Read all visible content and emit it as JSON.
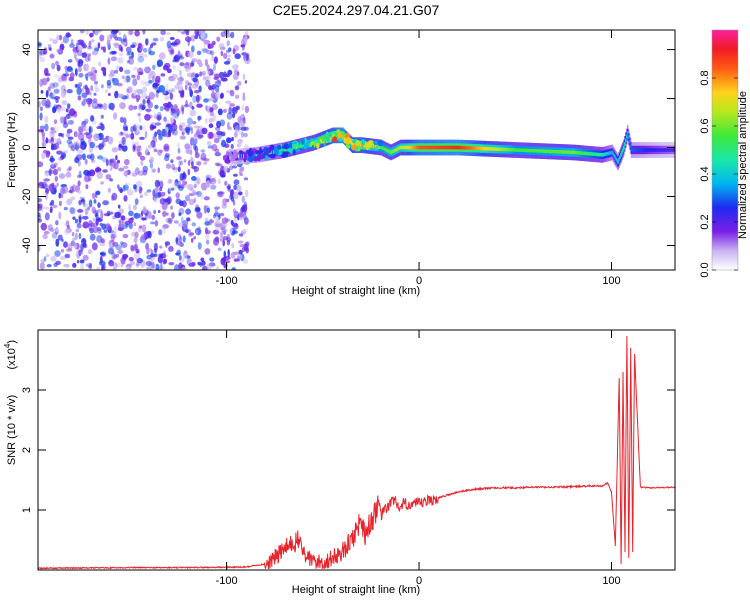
{
  "title": "C2E5.2024.297.04.21.G07",
  "chart_data": [
    {
      "type": "heatmap",
      "xlabel": "Height of straight line (km)",
      "ylabel": "Frequency (Hz)",
      "xlim": [
        -198,
        133
      ],
      "ylim": [
        -50,
        48
      ],
      "xticks": [
        -100,
        0,
        100
      ],
      "xtick_labels": [
        "-100",
        "0",
        "100"
      ],
      "yticks": [
        40,
        20,
        0,
        -20,
        -40
      ],
      "ytick_labels": [
        "40",
        "20",
        "0",
        "-20",
        "-40"
      ],
      "colorbar": {
        "label": "Normalized spectral amplitude",
        "range": [
          0.0,
          1.0
        ],
        "ticks": [
          0.0,
          0.2,
          0.4,
          0.6,
          0.8
        ],
        "tick_labels": [
          "0.0",
          "0.2",
          "0.4",
          "0.6",
          "0.8"
        ]
      },
      "ridge": {
        "x": [
          -100,
          -85,
          -70,
          -55,
          -45,
          -40,
          -35,
          -30,
          -20,
          -15,
          -10,
          0,
          20,
          50,
          80,
          95,
          100,
          103,
          106,
          108,
          110,
          120,
          133
        ],
        "y": [
          -4,
          -3,
          -1,
          2,
          5,
          5,
          1,
          1,
          0,
          -2,
          0,
          0,
          0,
          -1,
          -2,
          -3,
          -2,
          -6,
          0,
          6,
          -1,
          -1,
          -1
        ],
        "amplitude": [
          0.15,
          0.3,
          0.45,
          0.6,
          0.8,
          0.9,
          0.75,
          0.8,
          0.55,
          0.6,
          0.65,
          0.85,
          0.9,
          0.55,
          0.6,
          0.45,
          0.35,
          0.4,
          0.5,
          0.35,
          0.3,
          0.25,
          0.2
        ]
      },
      "noise_region": {
        "x_range": [
          -198,
          -95
        ],
        "amplitude": [
          0.05,
          0.3
        ]
      }
    },
    {
      "type": "line",
      "xlabel": "Height of straight line (km)",
      "ylabel": "SNR (10 * v/v)",
      "y_multiplier_label": "(x10",
      "y_multiplier_exp": "4",
      "xlim": [
        -198,
        133
      ],
      "ylim": [
        0,
        4.0
      ],
      "xticks": [
        -100,
        0,
        100
      ],
      "xtick_labels": [
        "-100",
        "0",
        "100"
      ],
      "yticks": [
        1,
        2,
        3
      ],
      "ytick_labels": [
        "1",
        "2",
        "3"
      ],
      "series": [
        {
          "color": "#e8232b",
          "x": [
            -198,
            -150,
            -120,
            -90,
            -80,
            -75,
            -70,
            -65,
            -62,
            -60,
            -58,
            -55,
            -50,
            -45,
            -40,
            -35,
            -30,
            -28,
            -25,
            -22,
            -20,
            -15,
            -12,
            -10,
            -8,
            -5,
            0,
            10,
            20,
            30,
            40,
            50,
            60,
            70,
            80,
            90,
            95,
            98,
            100,
            102,
            104,
            105,
            106,
            107,
            108,
            109,
            110,
            111,
            112,
            115,
            120,
            133
          ],
          "y": [
            0.03,
            0.04,
            0.04,
            0.05,
            0.1,
            0.2,
            0.35,
            0.45,
            0.5,
            0.3,
            0.2,
            0.15,
            0.12,
            0.2,
            0.3,
            0.5,
            0.85,
            0.6,
            0.8,
            1.05,
            0.9,
            1.1,
            1.2,
            0.95,
            1.1,
            1.1,
            1.1,
            1.2,
            1.3,
            1.35,
            1.37,
            1.37,
            1.38,
            1.38,
            1.39,
            1.4,
            1.4,
            1.45,
            1.3,
            0.4,
            3.2,
            0.1,
            3.3,
            0.3,
            3.9,
            0.2,
            3.7,
            0.3,
            3.6,
            1.38,
            1.37,
            1.38
          ]
        }
      ]
    }
  ]
}
